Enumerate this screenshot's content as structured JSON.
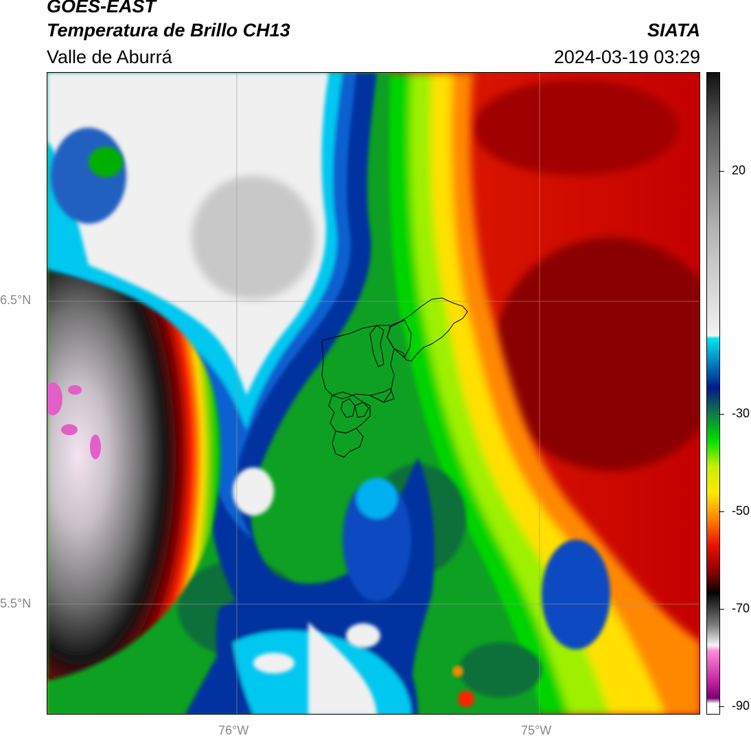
{
  "header": {
    "satellite": "GOES-EAST",
    "product": "Temperatura de Brillo CH13",
    "region": "Valle de Aburrá",
    "source": "SIATA",
    "timestamp": "2024-03-19 03:29"
  },
  "axes": {
    "lat_labels": [
      "6.5°N",
      "5.5°N"
    ],
    "lon_labels": [
      "76°W",
      "75°W"
    ]
  },
  "colorbar": {
    "tick_labels": [
      "20",
      "-30",
      "-50",
      "-70",
      "-90"
    ],
    "stops": [
      {
        "v": 30,
        "c": "#101010"
      },
      {
        "v": 20,
        "c": "#5a5a5a"
      },
      {
        "v": 0,
        "c": "#b4b4b4"
      },
      {
        "v": -20,
        "c": "#f2f2f2"
      },
      {
        "v": -20.5,
        "c": "#00e5f0"
      },
      {
        "v": -30,
        "c": "#001a8c"
      },
      {
        "v": -35,
        "c": "#0f7f45"
      },
      {
        "v": -40,
        "c": "#00e000"
      },
      {
        "v": -45,
        "c": "#c8f000"
      },
      {
        "v": -50,
        "c": "#ffe800"
      },
      {
        "v": -55,
        "c": "#ff8000"
      },
      {
        "v": -60,
        "c": "#e81000"
      },
      {
        "v": -65,
        "c": "#8c0000"
      },
      {
        "v": -69,
        "c": "#050505"
      },
      {
        "v": -75,
        "c": "#7a7a7a"
      },
      {
        "v": -79,
        "c": "#f4f4f4"
      },
      {
        "v": -80,
        "c": "#ff8ad8"
      },
      {
        "v": -86,
        "c": "#c020a0"
      },
      {
        "v": -89,
        "c": "#7a006e"
      },
      {
        "v": -90,
        "c": "#ffffff"
      }
    ]
  }
}
